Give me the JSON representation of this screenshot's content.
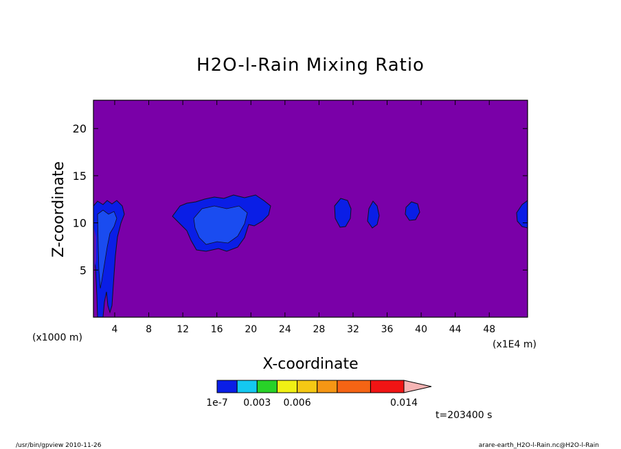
{
  "chart_data": {
    "type": "heatmap",
    "title": "H2O-l-Rain Mixing Ratio",
    "xlabel": "X-coordinate",
    "ylabel": "Z-coordinate",
    "x_unit_left": "(x1000 m)",
    "x_unit_right": "(x1E4 m)",
    "x_ticks": [
      "4",
      "8",
      "12",
      "16",
      "20",
      "24",
      "28",
      "32",
      "36",
      "40",
      "44",
      "48"
    ],
    "x_tick_values": [
      4,
      8,
      12,
      16,
      20,
      24,
      28,
      32,
      36,
      40,
      44,
      48
    ],
    "y_ticks": [
      "5",
      "10",
      "15",
      "20"
    ],
    "y_tick_values": [
      5,
      10,
      15,
      20
    ],
    "xlim": [
      1.5,
      52.5
    ],
    "ylim": [
      0,
      23
    ],
    "background_color": "#7a00a8",
    "contour_levels": [
      1e-07,
      0.0015,
      0.003,
      0.0045,
      0.006,
      0.0075,
      0.009,
      0.0115,
      0.014
    ],
    "colorbar": {
      "colors": [
        "#0a1ee6",
        "#14c8f0",
        "#28d228",
        "#f0f014",
        "#f5c814",
        "#f59614",
        "#f56414",
        "#f01414",
        "#f57a78"
      ],
      "extend_color": "#f5b4b4",
      "labels": [
        "1e-7",
        "0.003",
        "0.006",
        "0.014"
      ],
      "label_values": [
        1e-07,
        0.003,
        0.006,
        0.014
      ]
    },
    "time_label": "t=203400 s",
    "regions": [
      {
        "level": "1e-7 to 0.0015",
        "color": "#0a1ee6",
        "x": [
          1.5,
          5
        ],
        "z": [
          0,
          12
        ]
      },
      {
        "level": "1e-7 to 0.0015",
        "color": "#0a1ee6",
        "x": [
          10.5,
          22
        ],
        "z": [
          7,
          12
        ]
      },
      {
        "level": "1e-7 to 0.0015",
        "color": "#0a1ee6",
        "x": [
          28.5,
          31
        ],
        "z": [
          9.5,
          12.5
        ]
      },
      {
        "level": "1e-7 to 0.0015",
        "color": "#0a1ee6",
        "x": [
          32.5,
          34
        ],
        "z": [
          9.5,
          12
        ]
      },
      {
        "level": "1e-7 to 0.0015",
        "color": "#0a1ee6",
        "x": [
          36.5,
          38.5
        ],
        "z": [
          10,
          12
        ]
      },
      {
        "level": "1e-7 to 0.0015",
        "color": "#0a1ee6",
        "x": [
          51,
          52.5
        ],
        "z": [
          9.5,
          12.5
        ]
      }
    ]
  },
  "footer": {
    "left": "/usr/bin/gpview  2010-11-26",
    "right": "arare-earth_H2O-l-Rain.nc@H2O-l-Rain"
  }
}
